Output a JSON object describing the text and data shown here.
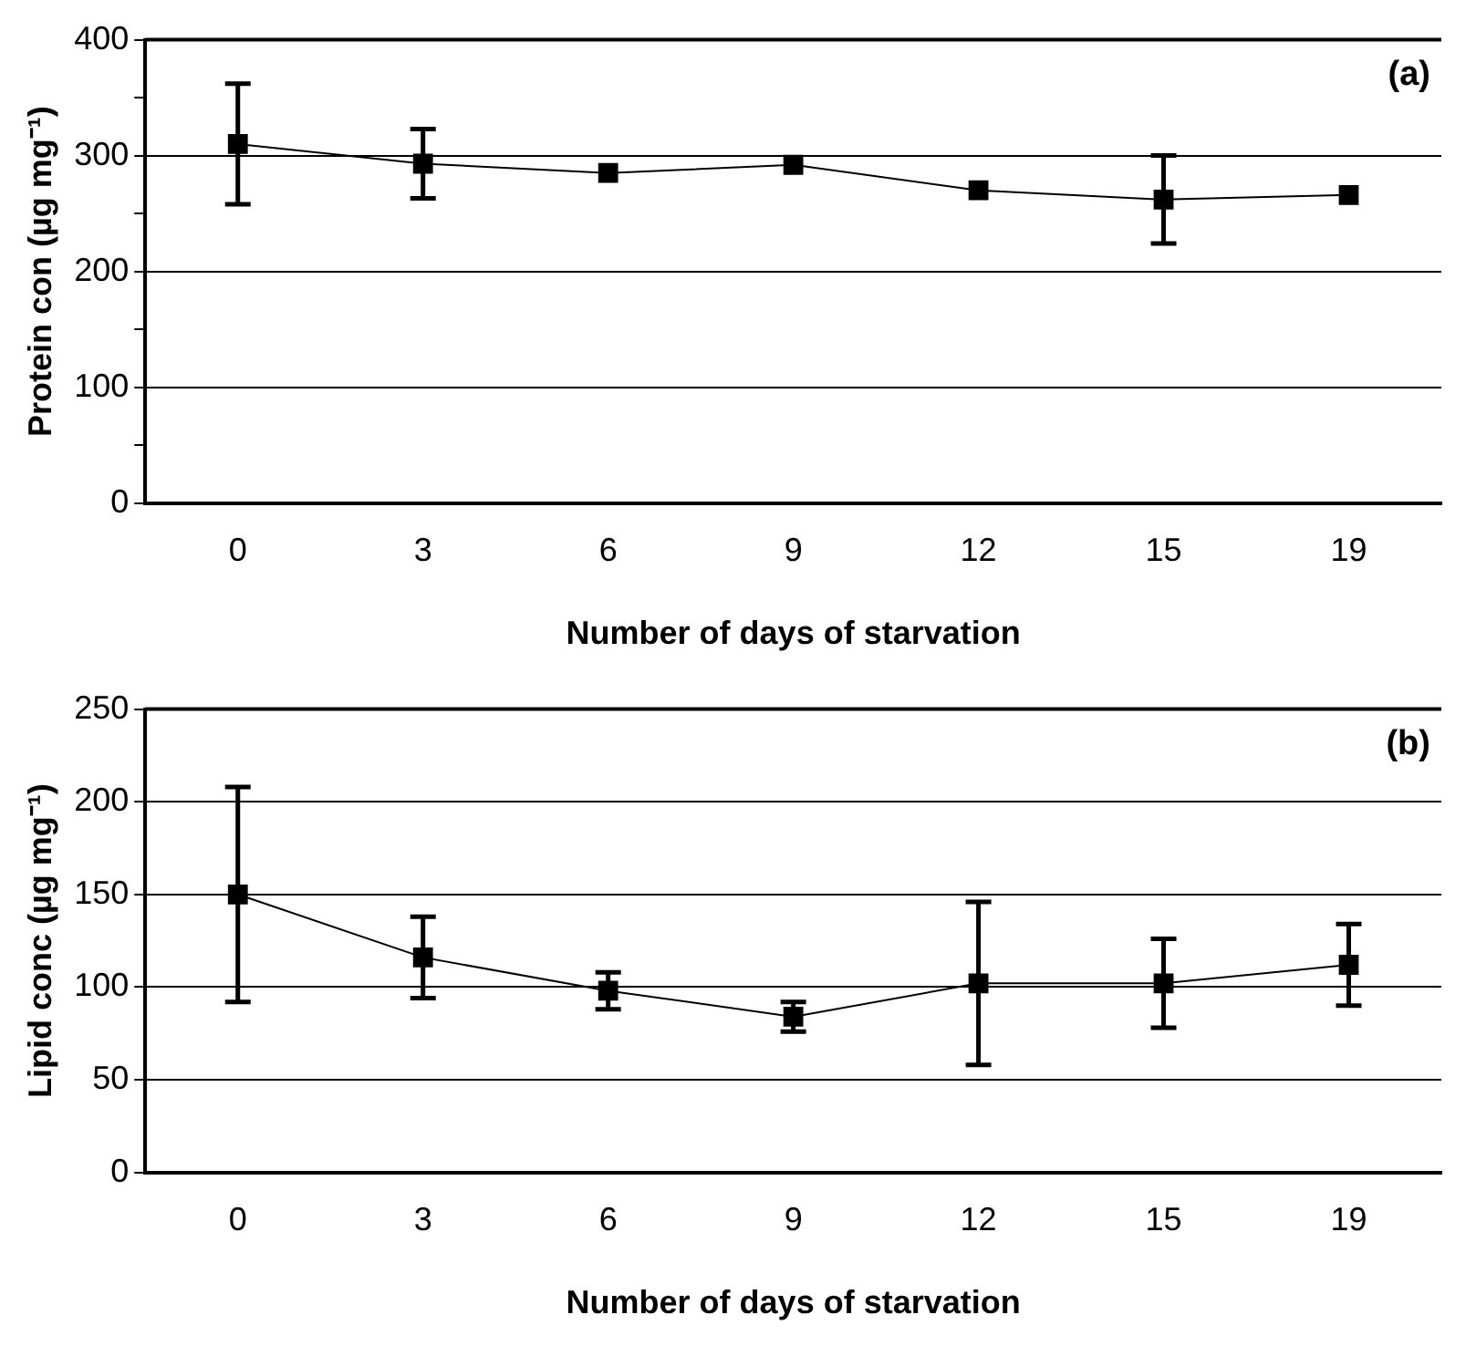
{
  "chart_data": [
    {
      "type": "line",
      "categories": [
        "0",
        "3",
        "6",
        "9",
        "12",
        "15",
        "19"
      ],
      "xlabel": "Number of days of starvation",
      "ylabel": "Protein con (µg mg⁻¹)",
      "annotations": [
        "(a)"
      ],
      "ylim": [
        0,
        400
      ],
      "yticks": [
        0,
        {
          "value": 50,
          "label": null
        },
        100,
        {
          "value": 150,
          "label": null
        },
        200,
        {
          "value": 250,
          "label": null
        },
        300,
        {
          "value": 350,
          "label": null
        },
        400
      ],
      "grid": "y",
      "marker": "square",
      "line_style": "solid",
      "series": [
        {
          "color": "#000000",
          "values": [
            310,
            293,
            285,
            292,
            270,
            262,
            266
          ],
          "errors": [
            52,
            30,
            null,
            null,
            null,
            38,
            null
          ]
        }
      ]
    },
    {
      "type": "line",
      "categories": [
        "0",
        "3",
        "6",
        "9",
        "12",
        "15",
        "19"
      ],
      "xlabel": "Number of days of starvation",
      "ylabel": "Lipid conc (µg mg⁻¹)",
      "annotations": [
        "(b)"
      ],
      "ylim": [
        0,
        250
      ],
      "yticks": [
        0,
        50,
        100,
        150,
        200,
        250
      ],
      "grid": "y",
      "marker": "square",
      "line_style": "solid",
      "series": [
        {
          "color": "#000000",
          "values": [
            150,
            116,
            98,
            84,
            102,
            102,
            112
          ],
          "errors": [
            58,
            22,
            10,
            8,
            44,
            24,
            22
          ]
        }
      ]
    }
  ]
}
